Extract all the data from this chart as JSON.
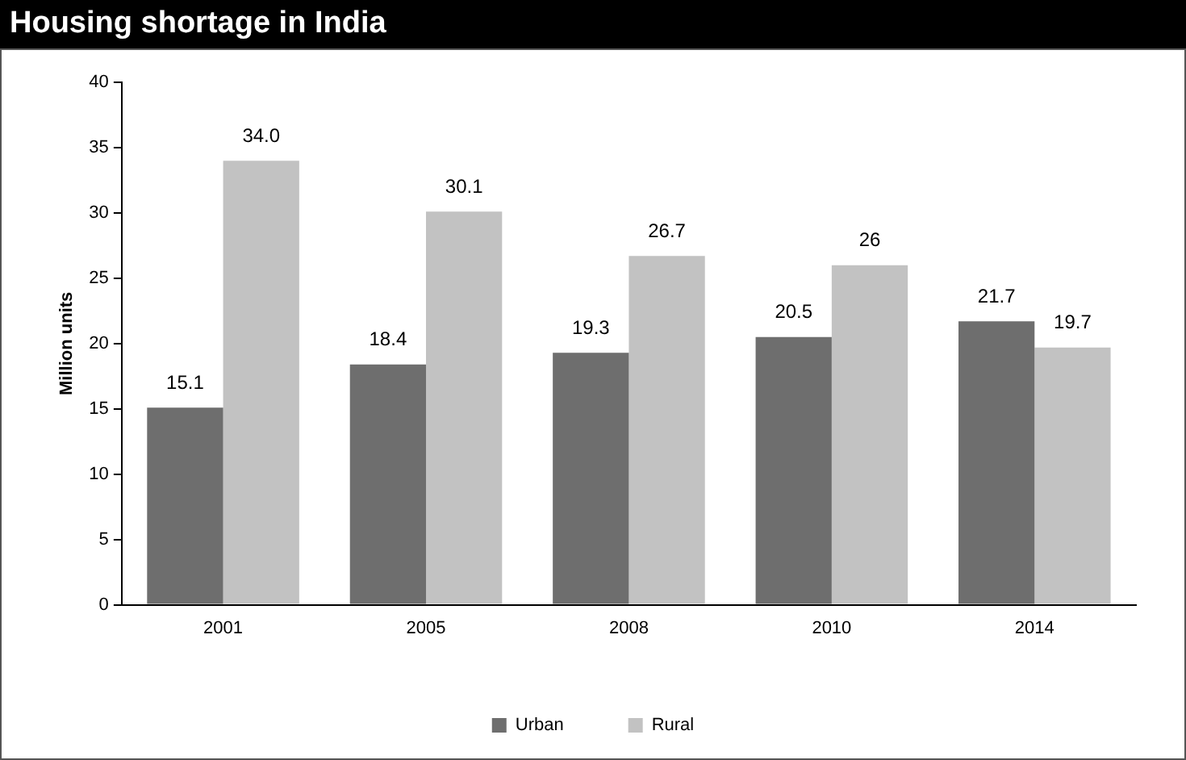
{
  "chart_data": {
    "type": "bar",
    "title": "Housing shortage in India",
    "ylabel": "Million units",
    "categories": [
      "2001",
      "2005",
      "2008",
      "2010",
      "2014"
    ],
    "series": [
      {
        "name": "Urban",
        "color": "#6e6e6e",
        "values": [
          15.1,
          18.4,
          19.3,
          20.5,
          21.7
        ],
        "value_labels": [
          "15.1",
          "18.4",
          "19.3",
          "20.5",
          "21.7"
        ]
      },
      {
        "name": "Rural",
        "color": "#c2c2c2",
        "values": [
          34.0,
          30.1,
          26.7,
          26,
          19.7
        ],
        "value_labels": [
          "34.0",
          "30.1",
          "26.7",
          "26",
          "19.7"
        ]
      }
    ],
    "ylim": [
      0,
      40
    ],
    "yticks": [
      0,
      5,
      10,
      15,
      20,
      25,
      30,
      35,
      40
    ],
    "grid": false,
    "legend": "bottom"
  }
}
